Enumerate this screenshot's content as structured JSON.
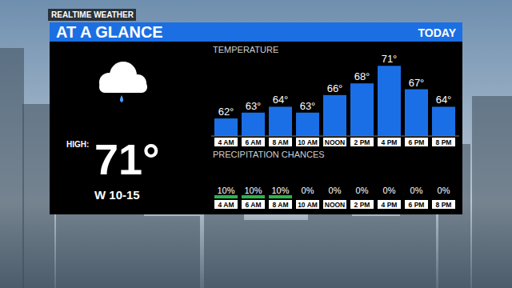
{
  "header": {
    "brand": "REALTIME WEATHER",
    "title": "AT A GLANCE",
    "period": "TODAY"
  },
  "summary": {
    "high_label": "HIGH:",
    "high": 71,
    "high_label_value": "71°",
    "wind": "W 10-15"
  },
  "chart_data": {
    "type": "bar",
    "title": "TEMPERATURE",
    "categories": [
      "4 AM",
      "6 AM",
      "8 AM",
      "10 AM",
      "NOON",
      "2 PM",
      "4 PM",
      "6 PM",
      "8 PM"
    ],
    "values": [
      62,
      63,
      64,
      63,
      66,
      68,
      71,
      67,
      64
    ],
    "value_labels": [
      "62°",
      "63°",
      "64°",
      "63°",
      "66°",
      "68°",
      "71°",
      "67°",
      "64°"
    ],
    "data_labels": true,
    "color": "#1b6fe6",
    "ylim": [
      59,
      72
    ],
    "tick_labels": false,
    "grid": false
  },
  "precipitation": {
    "title": "PRECIPITATION CHANCES",
    "values": [
      10,
      10,
      10,
      0,
      0,
      0,
      0,
      0,
      0
    ],
    "value_labels": [
      "10%",
      "10%",
      "10%",
      "0%",
      "0%",
      "0%",
      "0%",
      "0%",
      "0%"
    ],
    "color": "#2fb34a"
  }
}
